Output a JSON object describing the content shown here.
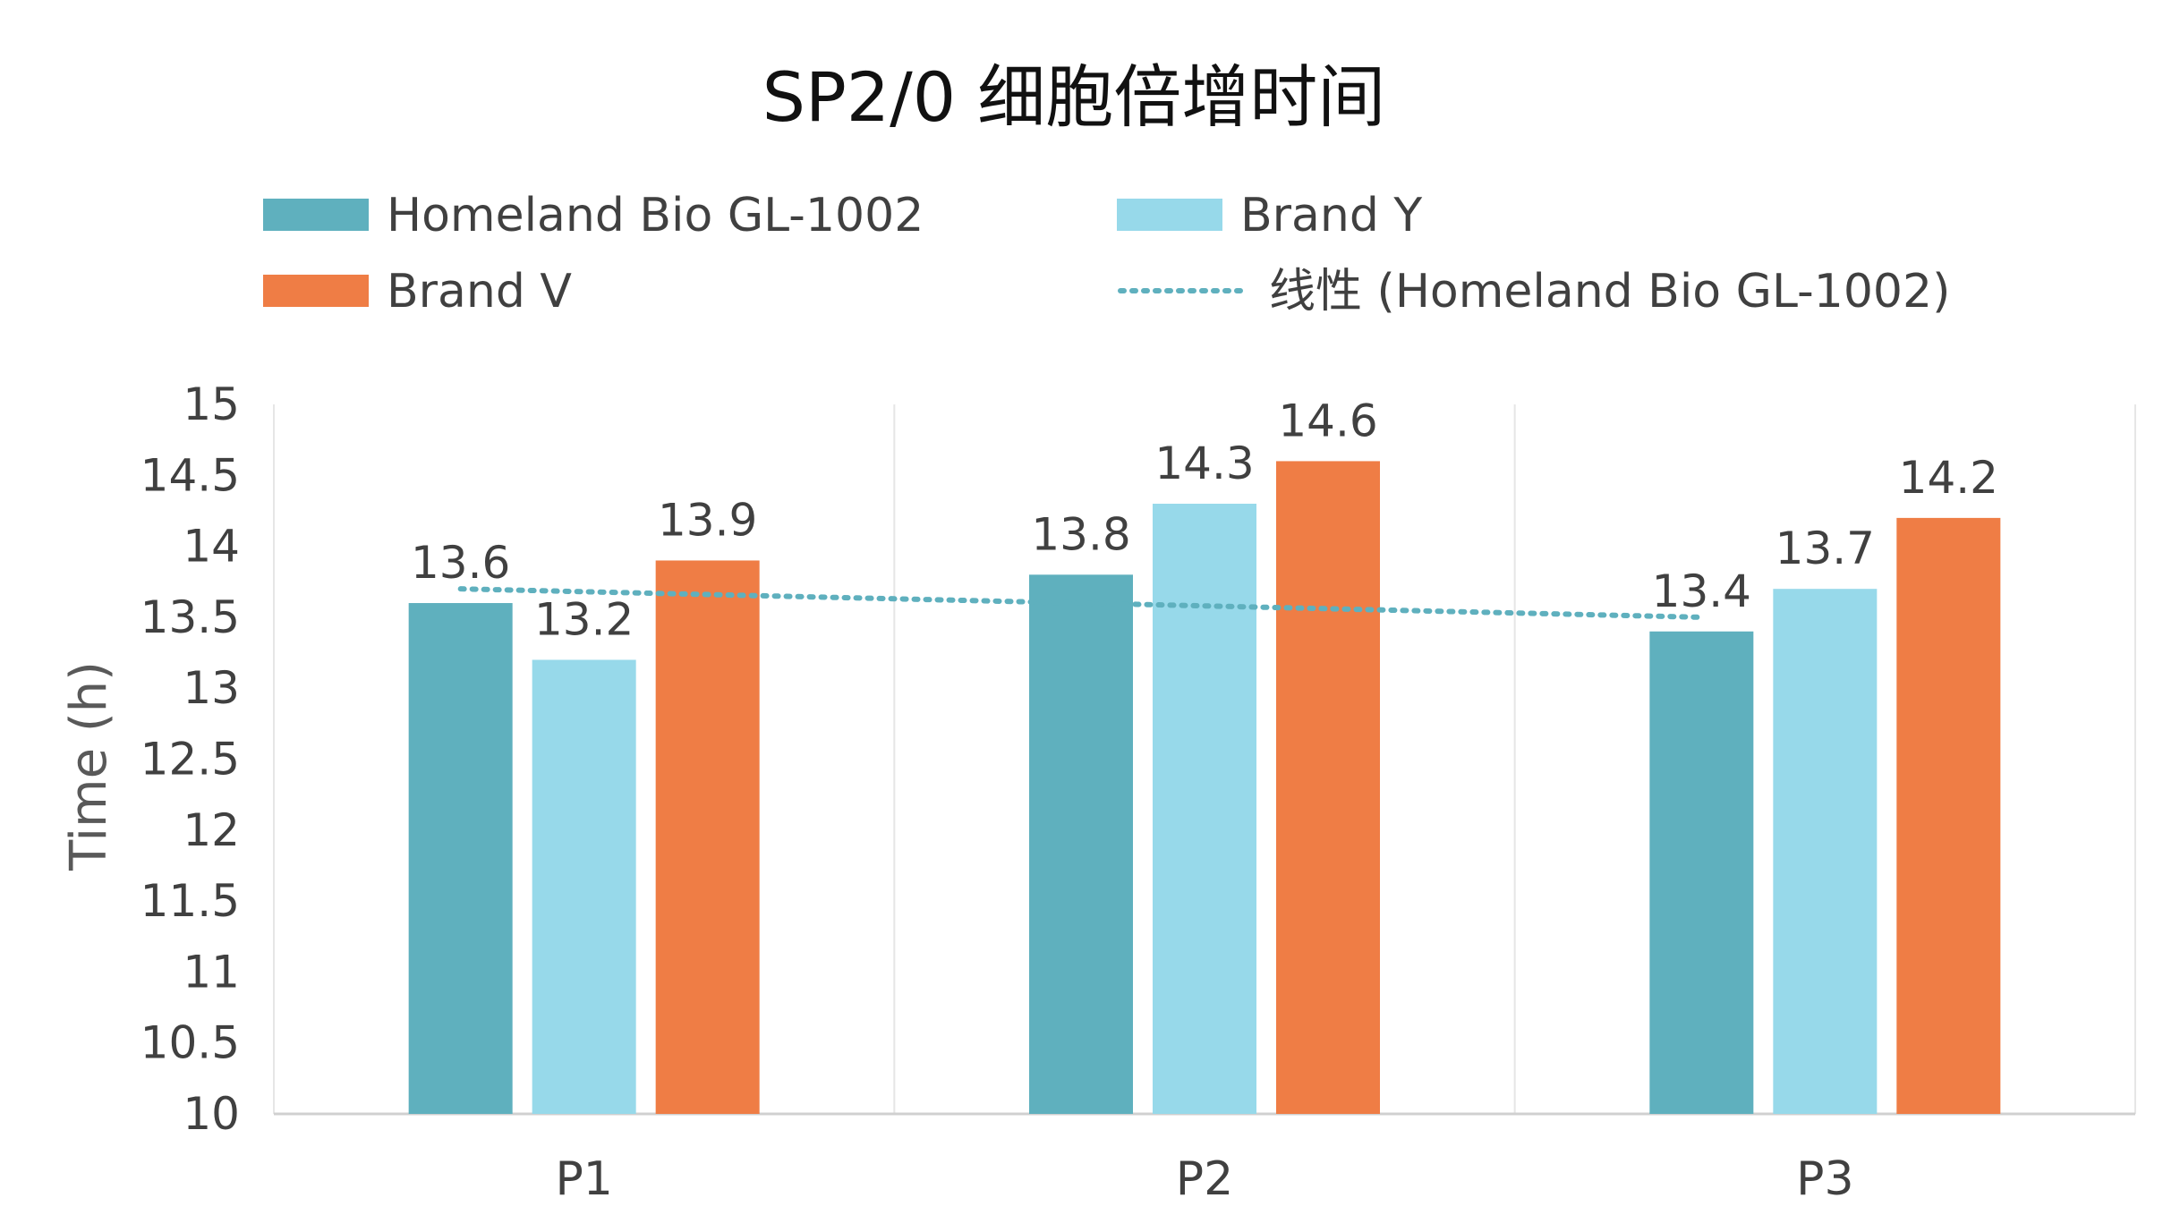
{
  "chart_data": {
    "type": "bar",
    "title": "SP2/0 细胞倍增时间",
    "xlabel": "",
    "ylabel": "Time  (h)",
    "ylim": [
      10,
      15
    ],
    "yticks": [
      "10",
      "10.5",
      "11",
      "11.5",
      "12",
      "12.5",
      "13",
      "13.5",
      "14",
      "14.5",
      "15"
    ],
    "categories": [
      "P1",
      "P2",
      "P3"
    ],
    "series": [
      {
        "name": "Homeland Bio GL-1002",
        "values": [
          13.6,
          13.8,
          13.4
        ],
        "labels": [
          "13.6",
          "13.8",
          "13.4"
        ],
        "color": "#5FB0BE"
      },
      {
        "name": "Brand Y",
        "values": [
          13.2,
          14.3,
          13.7
        ],
        "labels": [
          "13.2",
          "14.3",
          "13.7"
        ],
        "color": "#97D9EA"
      },
      {
        "name": "Brand V",
        "values": [
          13.9,
          14.6,
          14.2
        ],
        "labels": [
          "13.9",
          "14.6",
          "14.2"
        ],
        "color": "#EF7D45"
      }
    ],
    "trendline": {
      "name": "线性 (Homeland Bio GL-1002)",
      "series": "Homeland Bio GL-1002",
      "type": "linear",
      "color": "#5FB0BE"
    },
    "legend_position": "top",
    "grid": {
      "vertical": true,
      "horizontal": false
    }
  }
}
